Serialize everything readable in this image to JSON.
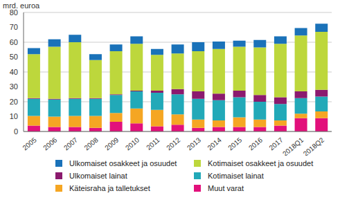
{
  "chart_data": {
    "type": "bar",
    "stacked": true,
    "grid": true,
    "legend": "bottom",
    "y_label": "mrd. euroa",
    "categories": [
      "2005",
      "2006",
      "2007",
      "2008",
      "2009",
      "2010",
      "2011",
      "2012",
      "2013",
      "2014",
      "2015",
      "2016",
      "2017",
      "2018Q1",
      "2018Q2"
    ],
    "ylim": [
      0,
      80
    ],
    "yticks": [
      0,
      10,
      20,
      30,
      40,
      50,
      60,
      70,
      80
    ],
    "series": [
      {
        "name": "Muut varat",
        "color": "#e2107b",
        "values": [
          4,
          3,
          3,
          2.5,
          6.5,
          5.5,
          3.5,
          4.5,
          2.5,
          3,
          3,
          3,
          4,
          9,
          9
        ]
      },
      {
        "name": "Käteisraha ja talletukset",
        "color": "#f5a623",
        "values": [
          6.5,
          7,
          7.5,
          8,
          6,
          10,
          11,
          7,
          5.5,
          4.5,
          6.5,
          5,
          3.5,
          3,
          4.5
        ]
      },
      {
        "name": "Kotimaiset lainat",
        "color": "#22a9b8",
        "values": [
          11.5,
          11.5,
          11.5,
          11.5,
          12,
          11.5,
          11.5,
          13.5,
          14,
          13.5,
          13.5,
          12,
          11,
          10.5,
          10
        ]
      },
      {
        "name": "Ulkomaiset lainat",
        "color": "#8b1a6e",
        "values": [
          0.5,
          0.5,
          0.5,
          0.5,
          0.5,
          0.5,
          1.5,
          3.5,
          5,
          4.5,
          4.5,
          4.5,
          4.5,
          4.5,
          4.5
        ]
      },
      {
        "name": "Kotimaiset osakkeet ja osuudet",
        "color": "#bdd73c",
        "values": [
          29.5,
          35,
          37.5,
          25.5,
          29,
          31.5,
          24,
          24,
          27,
          30,
          29.5,
          32,
          36,
          37.5,
          39
        ]
      },
      {
        "name": "Ulkomaiset osakkeet ja osuudet",
        "color": "#1a72b9",
        "values": [
          4,
          5,
          5,
          4,
          4.5,
          5,
          4,
          6,
          6,
          5,
          4,
          5,
          5,
          5,
          5.5
        ]
      }
    ]
  }
}
